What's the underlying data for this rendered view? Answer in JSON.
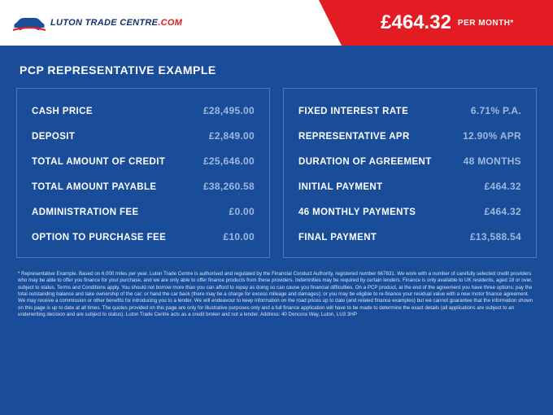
{
  "brand": {
    "name_main": "LUTON TRADE CENTRE",
    "name_suffix": ".COM",
    "car_color": "#1a4d99",
    "swoosh_color": "#e31b23"
  },
  "price": {
    "amount": "£464.32",
    "suffix": "PER MONTH*"
  },
  "title": "PCP REPRESENTATIVE EXAMPLE",
  "left_panel": [
    {
      "label": "CASH PRICE",
      "value": "£28,495.00"
    },
    {
      "label": "DEPOSIT",
      "value": "£2,849.00"
    },
    {
      "label": "TOTAL AMOUNT OF CREDIT",
      "value": "£25,646.00"
    },
    {
      "label": "TOTAL AMOUNT PAYABLE",
      "value": "£38,260.58"
    },
    {
      "label": "ADMINISTRATION FEE",
      "value": "£0.00"
    },
    {
      "label": "OPTION TO PURCHASE FEE",
      "value": "£10.00"
    }
  ],
  "right_panel": [
    {
      "label": "FIXED INTEREST RATE",
      "value": "6.71% P.A."
    },
    {
      "label": "REPRESENTATIVE APR",
      "value": "12.90% APR"
    },
    {
      "label": "DURATION OF AGREEMENT",
      "value": "48 MONTHS"
    },
    {
      "label": "INITIAL PAYMENT",
      "value": "£464.32"
    },
    {
      "label": "46 MONTHLY PAYMENTS",
      "value": "£464.32"
    },
    {
      "label": "FINAL PAYMENT",
      "value": "£13,588.54"
    }
  ],
  "disclaimer": "* Representative Example. Based on 6,000 miles per year. Luton Trade Centre is authorised and regulated by the Financial Conduct Authority, registered number 667831. We work with a number of carefully selected credit providers who may be able to offer you finance for your purchase, and we are only able to offer finance products from these providers. Indemnities may be required by certain lenders. Finance is only available to UK residents, aged 18 or over, subject to status. Terms and Conditions apply. You should not borrow more than you can afford to repay as doing so can cause you financial difficulties. On a PCP product, at the end of the agreement you have three options: pay the total outstanding balance and take ownership of the car; or hand the car back (there may be a charge for excess mileage and damages); or you may be eligible to re-finance your residual value with a new motor finance agreement. We may receive a commission or other benefits for introducing you to a lender. We will endeavour to keep information on the road prices up to date (and related finance examples) but we cannot guarantee that the information shown on this page is up to date at all times. The quotes provided on this page are only for illustrative purposes only and a full finance application will have to be made to determine the exact details (all applications are subject to an underwriting decision and are subject to status). Luton Trade Centre acts as a credit broker and not a lender. Address: 40 Dencora Way, Luton, LU3 3HP",
  "colors": {
    "page_bg": "#1a4d99",
    "header_bg": "#ffffff",
    "banner_bg": "#e31b23",
    "panel_border": "#4a78b8",
    "label_color": "#ffffff",
    "value_color": "#9db9dd",
    "disclaimer_color": "#d8e3f3"
  }
}
